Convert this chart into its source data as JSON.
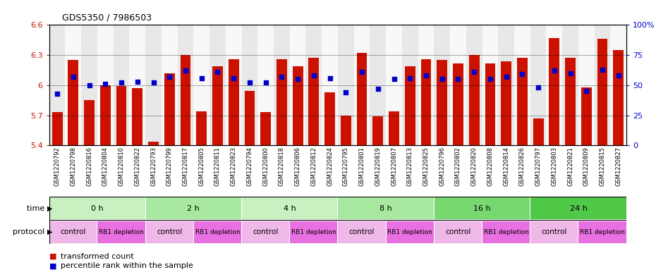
{
  "title": "GDS5350 / 7986503",
  "samples": [
    "GSM1220792",
    "GSM1220798",
    "GSM1220816",
    "GSM1220804",
    "GSM1220810",
    "GSM1220822",
    "GSM1220793",
    "GSM1220799",
    "GSM1220817",
    "GSM1220805",
    "GSM1220811",
    "GSM1220823",
    "GSM1220794",
    "GSM1220800",
    "GSM1220818",
    "GSM1220806",
    "GSM1220812",
    "GSM1220824",
    "GSM1220795",
    "GSM1220801",
    "GSM1220819",
    "GSM1220807",
    "GSM1220813",
    "GSM1220825",
    "GSM1220796",
    "GSM1220802",
    "GSM1220820",
    "GSM1220808",
    "GSM1220814",
    "GSM1220826",
    "GSM1220797",
    "GSM1220803",
    "GSM1220821",
    "GSM1220809",
    "GSM1220815",
    "GSM1220827"
  ],
  "bar_values": [
    5.73,
    6.25,
    5.85,
    6.0,
    5.99,
    5.97,
    5.44,
    6.12,
    6.3,
    5.74,
    6.19,
    6.26,
    5.94,
    5.73,
    6.26,
    6.19,
    6.27,
    5.93,
    5.7,
    6.32,
    5.69,
    5.74,
    6.19,
    6.26,
    6.25,
    6.22,
    6.3,
    6.22,
    6.24,
    6.27,
    5.67,
    6.47,
    6.27,
    5.98,
    6.46,
    6.35
  ],
  "percentile_values": [
    43,
    57,
    50,
    51,
    52,
    53,
    52,
    57,
    62,
    56,
    61,
    56,
    52,
    52,
    57,
    55,
    58,
    56,
    44,
    61,
    47,
    55,
    56,
    58,
    55,
    55,
    61,
    55,
    57,
    59,
    48,
    62,
    60,
    45,
    63,
    58
  ],
  "time_groups": [
    {
      "label": "0 h",
      "start": 0,
      "end": 6,
      "color": "#c8f0c0"
    },
    {
      "label": "2 h",
      "start": 6,
      "end": 12,
      "color": "#a8e8a0"
    },
    {
      "label": "4 h",
      "start": 12,
      "end": 18,
      "color": "#c8f0c0"
    },
    {
      "label": "8 h",
      "start": 18,
      "end": 24,
      "color": "#a8e8a0"
    },
    {
      "label": "16 h",
      "start": 24,
      "end": 30,
      "color": "#78d870"
    },
    {
      "label": "24 h",
      "start": 30,
      "end": 36,
      "color": "#50c848"
    }
  ],
  "protocol_groups": [
    {
      "label": "control",
      "start": 0,
      "end": 3,
      "color": "#f0b8e8"
    },
    {
      "label": "RB1 depletion",
      "start": 3,
      "end": 6,
      "color": "#e870e0"
    },
    {
      "label": "control",
      "start": 6,
      "end": 9,
      "color": "#f0b8e8"
    },
    {
      "label": "RB1 depletion",
      "start": 9,
      "end": 12,
      "color": "#e870e0"
    },
    {
      "label": "control",
      "start": 12,
      "end": 15,
      "color": "#f0b8e8"
    },
    {
      "label": "RB1 depletion",
      "start": 15,
      "end": 18,
      "color": "#e870e0"
    },
    {
      "label": "control",
      "start": 18,
      "end": 21,
      "color": "#f0b8e8"
    },
    {
      "label": "RB1 depletion",
      "start": 21,
      "end": 24,
      "color": "#e870e0"
    },
    {
      "label": "control",
      "start": 24,
      "end": 27,
      "color": "#f0b8e8"
    },
    {
      "label": "RB1 depletion",
      "start": 27,
      "end": 30,
      "color": "#e870e0"
    },
    {
      "label": "control",
      "start": 30,
      "end": 33,
      "color": "#f0b8e8"
    },
    {
      "label": "RB1 depletion",
      "start": 33,
      "end": 36,
      "color": "#e870e0"
    }
  ],
  "bar_color": "#cc1100",
  "dot_color": "#0000cc",
  "ylim_left": [
    5.4,
    6.6
  ],
  "ylim_right": [
    0,
    100
  ],
  "yticks_left": [
    5.4,
    5.7,
    6.0,
    6.3,
    6.6
  ],
  "ytick_labels_left": [
    "5.4",
    "5.7",
    "6",
    "6.3",
    "6.6"
  ],
  "yticks_right": [
    0,
    25,
    50,
    75,
    100
  ],
  "ytick_labels_right": [
    "0",
    "25",
    "50",
    "75",
    "100%"
  ],
  "legend_red_label": "transformed count",
  "legend_blue_label": "percentile rank within the sample",
  "time_label": "time",
  "protocol_label": "protocol",
  "col_bg_odd": "#e8e8e8",
  "col_bg_even": "#f8f8f8"
}
